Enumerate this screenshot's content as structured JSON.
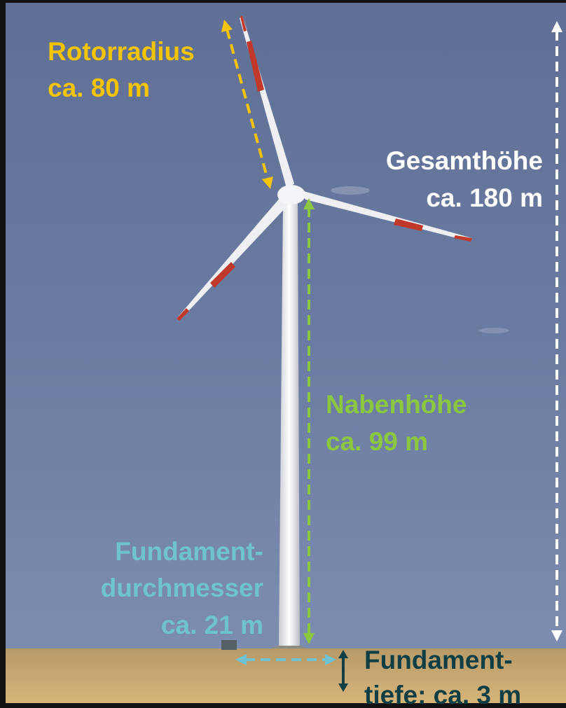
{
  "annotations": [
    {
      "name": "rotorradius",
      "lines": [
        "Rotorradius",
        "ca. 80 m"
      ]
    },
    {
      "name": "gesamthoehe",
      "lines": [
        "Gesamthöhe",
        "ca. 180 m"
      ]
    },
    {
      "name": "nabenhoehe",
      "lines": [
        "Nabenhöhe",
        "ca. 99 m"
      ]
    },
    {
      "name": "fundamentdurchmesser",
      "lines": [
        "Fundament-",
        "durchmesser",
        "ca. 21 m"
      ]
    },
    {
      "name": "fundamenttiefe",
      "lines": [
        "Fundament-",
        "tiefe: ca. 3 m"
      ]
    }
  ]
}
